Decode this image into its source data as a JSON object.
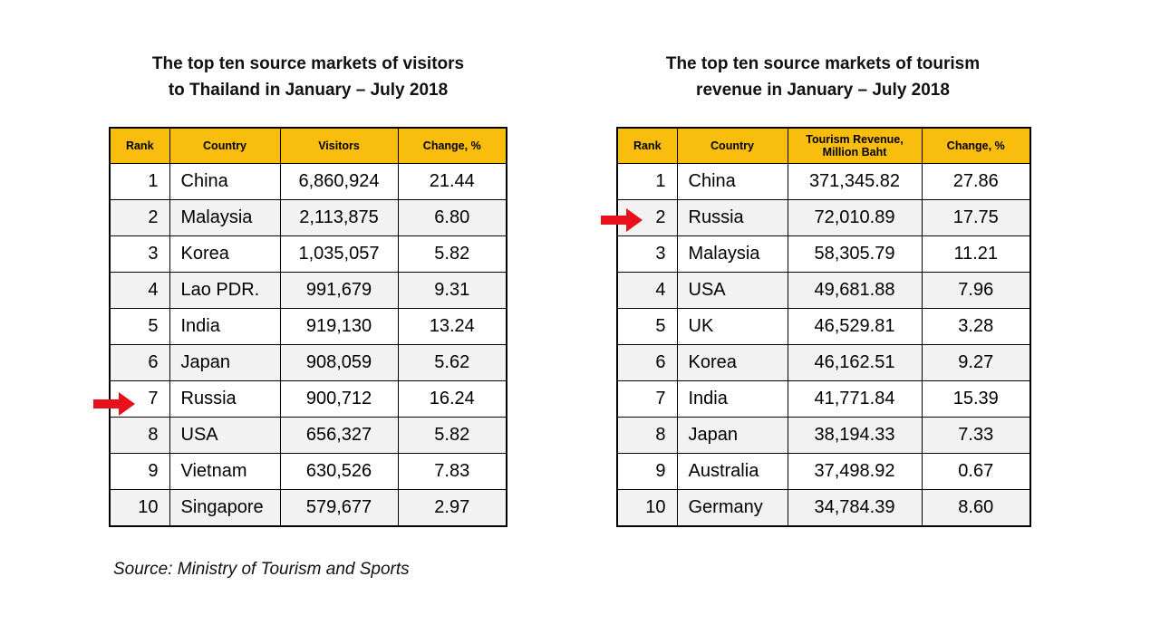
{
  "left": {
    "title_line1": "The top ten source markets of visitors",
    "title_line2": "to Thailand in January – July 2018",
    "headers": [
      "Rank",
      "Country",
      "Visitors",
      "Change, %"
    ],
    "rows": [
      {
        "rank": "1",
        "country": "China",
        "value": "6,860,924",
        "change": "21.44"
      },
      {
        "rank": "2",
        "country": "Malaysia",
        "value": "2,113,875",
        "change": "6.80"
      },
      {
        "rank": "3",
        "country": "Korea",
        "value": "1,035,057",
        "change": "5.82"
      },
      {
        "rank": "4",
        "country": "Lao PDR.",
        "value": "991,679",
        "change": "9.31"
      },
      {
        "rank": "5",
        "country": "India",
        "value": "919,130",
        "change": "13.24"
      },
      {
        "rank": "6",
        "country": "Japan",
        "value": "908,059",
        "change": "5.62"
      },
      {
        "rank": "7",
        "country": "Russia",
        "value": "900,712",
        "change": "16.24"
      },
      {
        "rank": "8",
        "country": "USA",
        "value": "656,327",
        "change": "5.82"
      },
      {
        "rank": "9",
        "country": "Vietnam",
        "value": "630,526",
        "change": "7.83"
      },
      {
        "rank": "10",
        "country": "Singapore",
        "value": "579,677",
        "change": "2.97"
      }
    ]
  },
  "right": {
    "title_line1": "The top ten source markets of tourism",
    "title_line2": "revenue in January – July 2018",
    "headers": [
      "Rank",
      "Country",
      "Tourism Revenue,",
      "Change, %"
    ],
    "header_value_line2": "Million Baht",
    "rows": [
      {
        "rank": "1",
        "country": "China",
        "value": "371,345.82",
        "change": "27.86"
      },
      {
        "rank": "2",
        "country": "Russia",
        "value": "72,010.89",
        "change": "17.75"
      },
      {
        "rank": "3",
        "country": "Malaysia",
        "value": "58,305.79",
        "change": "11.21"
      },
      {
        "rank": "4",
        "country": "USA",
        "value": "49,681.88",
        "change": "7.96"
      },
      {
        "rank": "5",
        "country": "UK",
        "value": "46,529.81",
        "change": "3.28"
      },
      {
        "rank": "6",
        "country": "Korea",
        "value": "46,162.51",
        "change": "9.27"
      },
      {
        "rank": "7",
        "country": "India",
        "value": "41,771.84",
        "change": "15.39"
      },
      {
        "rank": "8",
        "country": "Japan",
        "value": "38,194.33",
        "change": "7.33"
      },
      {
        "rank": "9",
        "country": "Australia",
        "value": "37,498.92",
        "change": "0.67"
      },
      {
        "rank": "10",
        "country": "Germany",
        "value": "34,784.39",
        "change": "8.60"
      }
    ]
  },
  "highlight": {
    "left_row_rank": "7",
    "right_row_rank": "2",
    "arrow_color": "#e8101a"
  },
  "colors": {
    "header_bg": "#f9bd0e",
    "alt_row_bg": "#f2f2f2"
  },
  "source": "Source: Ministry of Tourism and Sports"
}
